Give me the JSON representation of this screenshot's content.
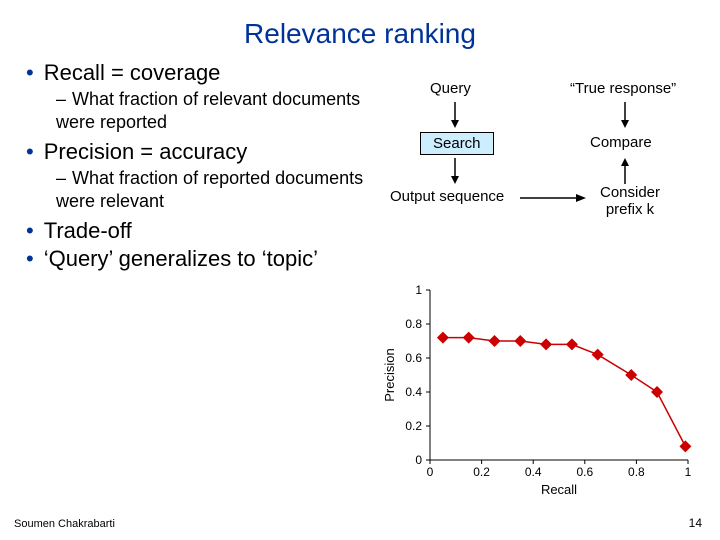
{
  "title": "Relevance ranking",
  "title_color": "#003399",
  "bullets": {
    "b1": "Recall = coverage",
    "s1": "What fraction of relevant documents were reported",
    "b2": "Precision = accuracy",
    "s2": "What fraction of reported documents were relevant",
    "b3": "Trade-off",
    "b4": "‘Query’ generalizes to ‘topic’"
  },
  "diagram": {
    "query": "Query",
    "true_response": "“True response”",
    "search": "Search",
    "compare": "Compare",
    "output": "Output sequence",
    "consider": "Consider prefix k",
    "arrow_color": "#000000",
    "search_bg": "#cceeff"
  },
  "chart": {
    "type": "line",
    "xlabel": "Recall",
    "ylabel": "Precision",
    "xlim": [
      0,
      1
    ],
    "ylim": [
      0,
      1
    ],
    "xticks": [
      0,
      0.2,
      0.4,
      0.6,
      0.8,
      1
    ],
    "yticks": [
      0,
      0.2,
      0.4,
      0.6,
      0.8,
      1
    ],
    "line_color": "#cc0000",
    "marker": "diamond",
    "marker_fill": "#cc0000",
    "marker_size": 6,
    "line_width": 1.5,
    "x": [
      0.05,
      0.15,
      0.25,
      0.35,
      0.45,
      0.55,
      0.65,
      0.78,
      0.88,
      0.99
    ],
    "y": [
      0.72,
      0.72,
      0.7,
      0.7,
      0.68,
      0.68,
      0.62,
      0.5,
      0.4,
      0.08
    ],
    "tick_fontsize": 12,
    "label_fontsize": 13,
    "axis_color": "#000000",
    "background_color": "#ffffff"
  },
  "footer": "Soumen Chakrabarti",
  "pagenum": "14"
}
